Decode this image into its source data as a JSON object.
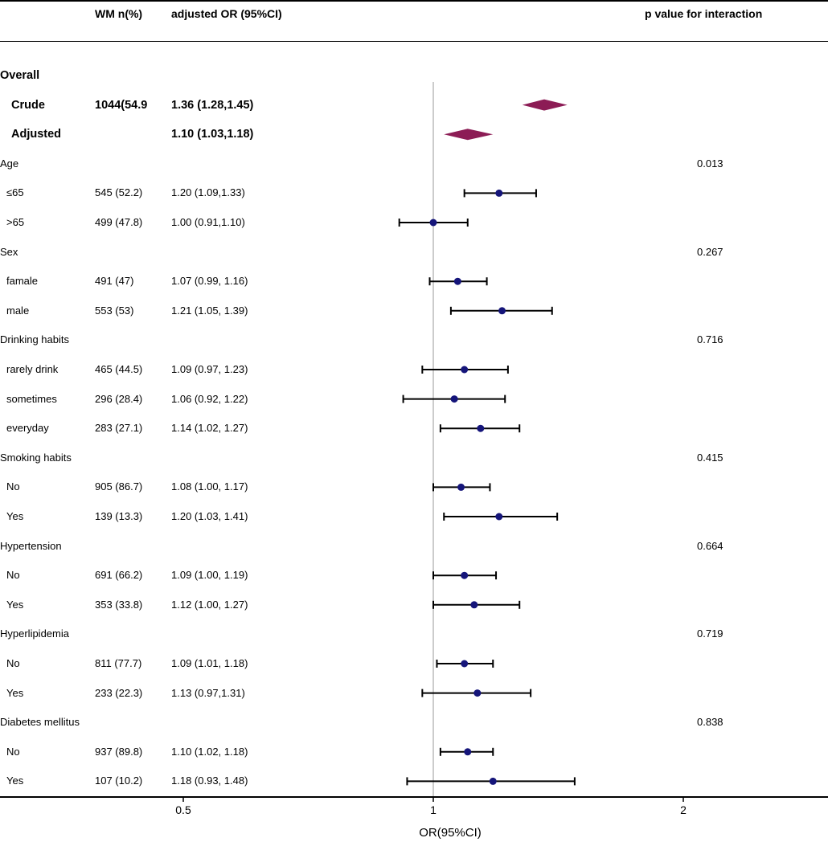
{
  "headers": {
    "n": "WM n(%)",
    "or": "adjusted OR (95%CI)",
    "p": "p value for interaction"
  },
  "rows": [
    {
      "label": "Overall",
      "n": "",
      "or_text": "",
      "p": "",
      "kind": "section",
      "bold": true
    },
    {
      "label": "Crude",
      "n": "1044(54.9",
      "or_text": "1.36 (1.28,1.45)",
      "p": "",
      "kind": "sub",
      "bold": true
    },
    {
      "label": "Adjusted",
      "n": "",
      "or_text": "1.10 (1.03,1.18)",
      "p": "",
      "kind": "sub",
      "bold": true
    },
    {
      "label": "Age",
      "n": "",
      "or_text": "",
      "p": "0.013",
      "kind": "section",
      "bold": false
    },
    {
      "label": "≤65",
      "n": "545 (52.2)",
      "or_text": "1.20 (1.09,1.33)",
      "p": "",
      "kind": "sub",
      "bold": false
    },
    {
      "label": ">65",
      "n": "499 (47.8)",
      "or_text": "1.00 (0.91,1.10)",
      "p": "",
      "kind": "sub",
      "bold": false
    },
    {
      "label": "Sex",
      "n": "",
      "or_text": "",
      "p": "0.267",
      "kind": "section",
      "bold": false
    },
    {
      "label": "famale",
      "n": "491 (47)",
      "or_text": "1.07 (0.99, 1.16)",
      "p": "",
      "kind": "sub",
      "bold": false
    },
    {
      "label": "male",
      "n": "553 (53)",
      "or_text": "1.21 (1.05, 1.39)",
      "p": "",
      "kind": "sub",
      "bold": false
    },
    {
      "label": "Drinking habits",
      "n": "",
      "or_text": "",
      "p": "0.716",
      "kind": "section",
      "bold": false
    },
    {
      "label": "rarely drink",
      "n": "465 (44.5)",
      "or_text": "1.09 (0.97, 1.23)",
      "p": "",
      "kind": "sub",
      "bold": false
    },
    {
      "label": "sometimes",
      "n": "296 (28.4)",
      "or_text": "1.06 (0.92, 1.22)",
      "p": "",
      "kind": "sub",
      "bold": false
    },
    {
      "label": "everyday",
      "n": "283 (27.1)",
      "or_text": "1.14 (1.02, 1.27)",
      "p": "",
      "kind": "sub",
      "bold": false
    },
    {
      "label": "Smoking habits",
      "n": "",
      "or_text": "",
      "p": "0.415",
      "kind": "section",
      "bold": false
    },
    {
      "label": "No",
      "n": "905 (86.7)",
      "or_text": "1.08 (1.00, 1.17)",
      "p": "",
      "kind": "sub",
      "bold": false
    },
    {
      "label": "Yes",
      "n": "139 (13.3)",
      "or_text": "1.20 (1.03, 1.41)",
      "p": "",
      "kind": "sub",
      "bold": false
    },
    {
      "label": "Hypertension",
      "n": "",
      "or_text": "",
      "p": "0.664",
      "kind": "section",
      "bold": false
    },
    {
      "label": "No",
      "n": "691 (66.2)",
      "or_text": "1.09 (1.00, 1.19)",
      "p": "",
      "kind": "sub",
      "bold": false
    },
    {
      "label": "Yes",
      "n": "353 (33.8)",
      "or_text": "1.12 (1.00, 1.27)",
      "p": "",
      "kind": "sub",
      "bold": false
    },
    {
      "label": "Hyperlipidemia",
      "n": "",
      "or_text": "",
      "p": "0.719",
      "kind": "section",
      "bold": false
    },
    {
      "label": "No",
      "n": "811 (77.7)",
      "or_text": "1.09 (1.01, 1.18)",
      "p": "",
      "kind": "sub",
      "bold": false
    },
    {
      "label": "Yes",
      "n": "233 (22.3)",
      "or_text": "1.13 (0.97,1.31)",
      "p": "",
      "kind": "sub",
      "bold": false
    },
    {
      "label": "Diabetes mellitus",
      "n": "",
      "or_text": "",
      "p": "0.838",
      "kind": "section",
      "bold": false
    },
    {
      "label": "No",
      "n": "937 (89.8)",
      "or_text": "1.10 (1.02, 1.18)",
      "p": "",
      "kind": "sub",
      "bold": false
    },
    {
      "label": "Yes",
      "n": "107 (10.2)",
      "or_text": "1.18 (0.93, 1.48)",
      "p": "",
      "kind": "sub",
      "bold": false
    }
  ],
  "chart_data": {
    "type": "forest",
    "xlabel": "OR(95%CI)",
    "x_scale": "log",
    "x_ticks": [
      0.5,
      1,
      2
    ],
    "x_tick_labels": [
      "0.5",
      "1",
      "2"
    ],
    "reference_line": 1,
    "colors": {
      "diamond": "#8c1c55",
      "point": "#15157a",
      "ref": "#aaaaaa"
    },
    "estimates": [
      {
        "row": 1,
        "label": "Crude",
        "or": 1.36,
        "lo": 1.28,
        "hi": 1.45,
        "shape": "diamond"
      },
      {
        "row": 2,
        "label": "Adjusted",
        "or": 1.1,
        "lo": 1.03,
        "hi": 1.18,
        "shape": "diamond"
      },
      {
        "row": 4,
        "label": "≤65",
        "or": 1.2,
        "lo": 1.09,
        "hi": 1.33,
        "shape": "point"
      },
      {
        "row": 5,
        "label": ">65",
        "or": 1.0,
        "lo": 0.91,
        "hi": 1.1,
        "shape": "point"
      },
      {
        "row": 7,
        "label": "famale",
        "or": 1.07,
        "lo": 0.99,
        "hi": 1.16,
        "shape": "point"
      },
      {
        "row": 8,
        "label": "male",
        "or": 1.21,
        "lo": 1.05,
        "hi": 1.39,
        "shape": "point"
      },
      {
        "row": 10,
        "label": "rarely drink",
        "or": 1.09,
        "lo": 0.97,
        "hi": 1.23,
        "shape": "point"
      },
      {
        "row": 11,
        "label": "sometimes",
        "or": 1.06,
        "lo": 0.92,
        "hi": 1.22,
        "shape": "point"
      },
      {
        "row": 12,
        "label": "everyday",
        "or": 1.14,
        "lo": 1.02,
        "hi": 1.27,
        "shape": "point"
      },
      {
        "row": 14,
        "label": "Smoking No",
        "or": 1.08,
        "lo": 1.0,
        "hi": 1.17,
        "shape": "point"
      },
      {
        "row": 15,
        "label": "Smoking Yes",
        "or": 1.2,
        "lo": 1.03,
        "hi": 1.41,
        "shape": "point"
      },
      {
        "row": 17,
        "label": "Hypertension No",
        "or": 1.09,
        "lo": 1.0,
        "hi": 1.19,
        "shape": "point"
      },
      {
        "row": 18,
        "label": "Hypertension Yes",
        "or": 1.12,
        "lo": 1.0,
        "hi": 1.27,
        "shape": "point"
      },
      {
        "row": 20,
        "label": "Hyperlipidemia No",
        "or": 1.09,
        "lo": 1.01,
        "hi": 1.18,
        "shape": "point"
      },
      {
        "row": 21,
        "label": "Hyperlipidemia Yes",
        "or": 1.13,
        "lo": 0.97,
        "hi": 1.31,
        "shape": "point"
      },
      {
        "row": 23,
        "label": "Diabetes No",
        "or": 1.1,
        "lo": 1.02,
        "hi": 1.18,
        "shape": "point"
      },
      {
        "row": 24,
        "label": "Diabetes Yes",
        "or": 1.18,
        "lo": 0.93,
        "hi": 1.48,
        "shape": "point"
      }
    ]
  }
}
